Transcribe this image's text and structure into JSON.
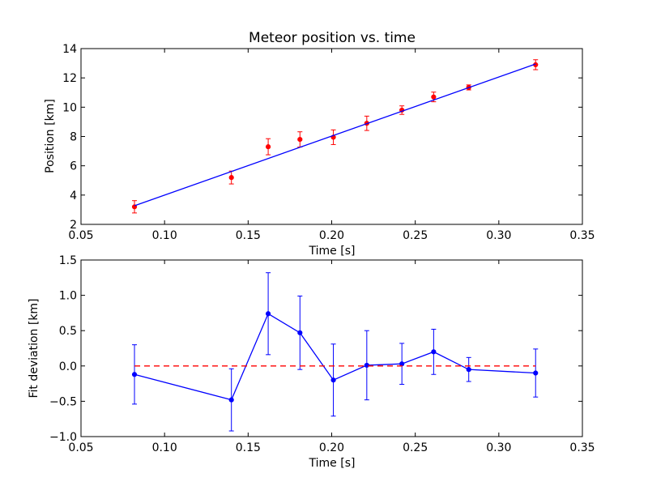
{
  "chart_data": [
    {
      "type": "scatter",
      "title": "Meteor position vs. time",
      "xlabel": "Time [s]",
      "ylabel": "Position [km]",
      "xlim": [
        0.05,
        0.35
      ],
      "ylim": [
        2,
        14
      ],
      "xticks": [
        "0.05",
        "0.10",
        "0.15",
        "0.20",
        "0.25",
        "0.30",
        "0.35"
      ],
      "yticks": [
        "2",
        "4",
        "6",
        "8",
        "10",
        "12",
        "14"
      ],
      "grid": false,
      "series": [
        {
          "kind": "errorbar-points",
          "color": "#ff0000",
          "x": [
            0.082,
            0.14,
            0.162,
            0.181,
            0.201,
            0.221,
            0.242,
            0.261,
            0.282,
            0.322
          ],
          "y": [
            3.2,
            5.2,
            7.3,
            7.8,
            7.95,
            8.9,
            9.8,
            10.7,
            11.35,
            12.9
          ],
          "yerr": [
            0.42,
            0.44,
            0.55,
            0.52,
            0.5,
            0.49,
            0.29,
            0.33,
            0.17,
            0.34
          ]
        },
        {
          "kind": "fit-line",
          "color": "#0000ff",
          "x": [
            0.082,
            0.322
          ],
          "y": [
            3.27,
            12.95
          ]
        }
      ]
    },
    {
      "type": "line",
      "title": "",
      "xlabel": "Time [s]",
      "ylabel": "Fit deviation [km]",
      "xlim": [
        0.05,
        0.35
      ],
      "ylim": [
        -1.0,
        1.5
      ],
      "xticks": [
        "0.05",
        "0.10",
        "0.15",
        "0.20",
        "0.25",
        "0.30",
        "0.35"
      ],
      "yticks": [
        "−1.0",
        "−0.5",
        "0.0",
        "0.5",
        "1.0",
        "1.5"
      ],
      "grid": false,
      "series": [
        {
          "kind": "errorbar-line",
          "color": "#0000ff",
          "x": [
            0.082,
            0.14,
            0.162,
            0.181,
            0.201,
            0.221,
            0.242,
            0.261,
            0.282,
            0.322
          ],
          "y": [
            -0.12,
            -0.48,
            0.74,
            0.47,
            -0.2,
            0.01,
            0.03,
            0.2,
            -0.05,
            -0.1
          ],
          "yerr": [
            0.42,
            0.44,
            0.58,
            0.52,
            0.51,
            0.49,
            0.29,
            0.32,
            0.17,
            0.34
          ]
        },
        {
          "kind": "reference-line",
          "color": "#ff0000",
          "dashed": true,
          "x": [
            0.082,
            0.322
          ],
          "y": [
            0,
            0
          ]
        }
      ]
    }
  ]
}
